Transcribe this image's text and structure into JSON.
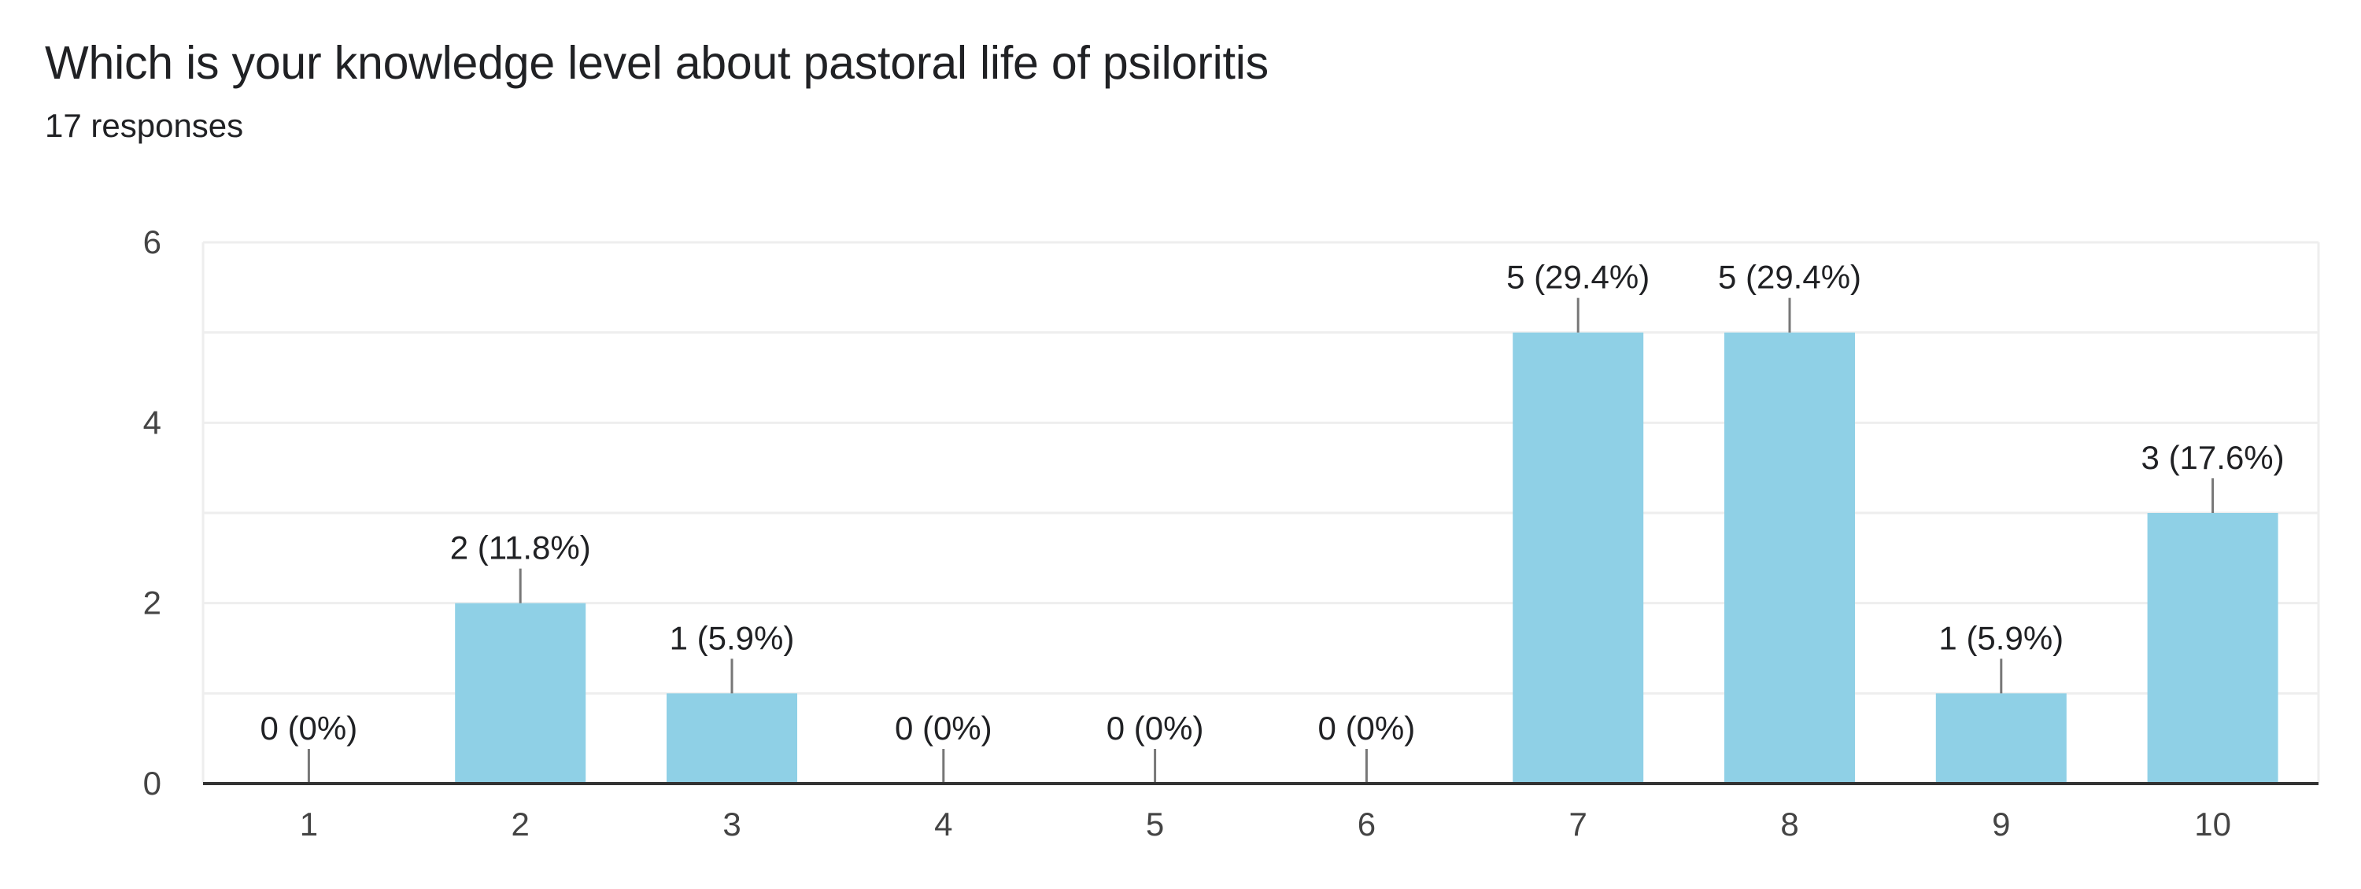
{
  "header": {
    "title": "Which is your knowledge level about pastoral life of psiloritis",
    "responses": "17 responses"
  },
  "colors": {
    "bar": "#8fd0e6",
    "grid": "#eeeeee",
    "axis": "#333333",
    "leader": "#777777",
    "text": "#202124",
    "tick_text": "#444444"
  },
  "chart_data": {
    "type": "bar",
    "title": "Which is your knowledge level about pastoral life of psiloritis",
    "subtitle": "17 responses",
    "xlabel": "",
    "ylabel": "",
    "ylim": [
      0,
      6
    ],
    "yticks": [
      0,
      2,
      4,
      6
    ],
    "grid": true,
    "categories": [
      "1",
      "2",
      "3",
      "4",
      "5",
      "6",
      "7",
      "8",
      "9",
      "10"
    ],
    "values": [
      0,
      2,
      1,
      0,
      0,
      0,
      5,
      5,
      1,
      3
    ],
    "data_labels": [
      "0 (0%)",
      "2 (11.8%)",
      "1 (5.9%)",
      "0 (0%)",
      "0 (0%)",
      "0 (0%)",
      "5 (29.4%)",
      "5 (29.4%)",
      "1 (5.9%)",
      "3 (17.6%)"
    ]
  }
}
